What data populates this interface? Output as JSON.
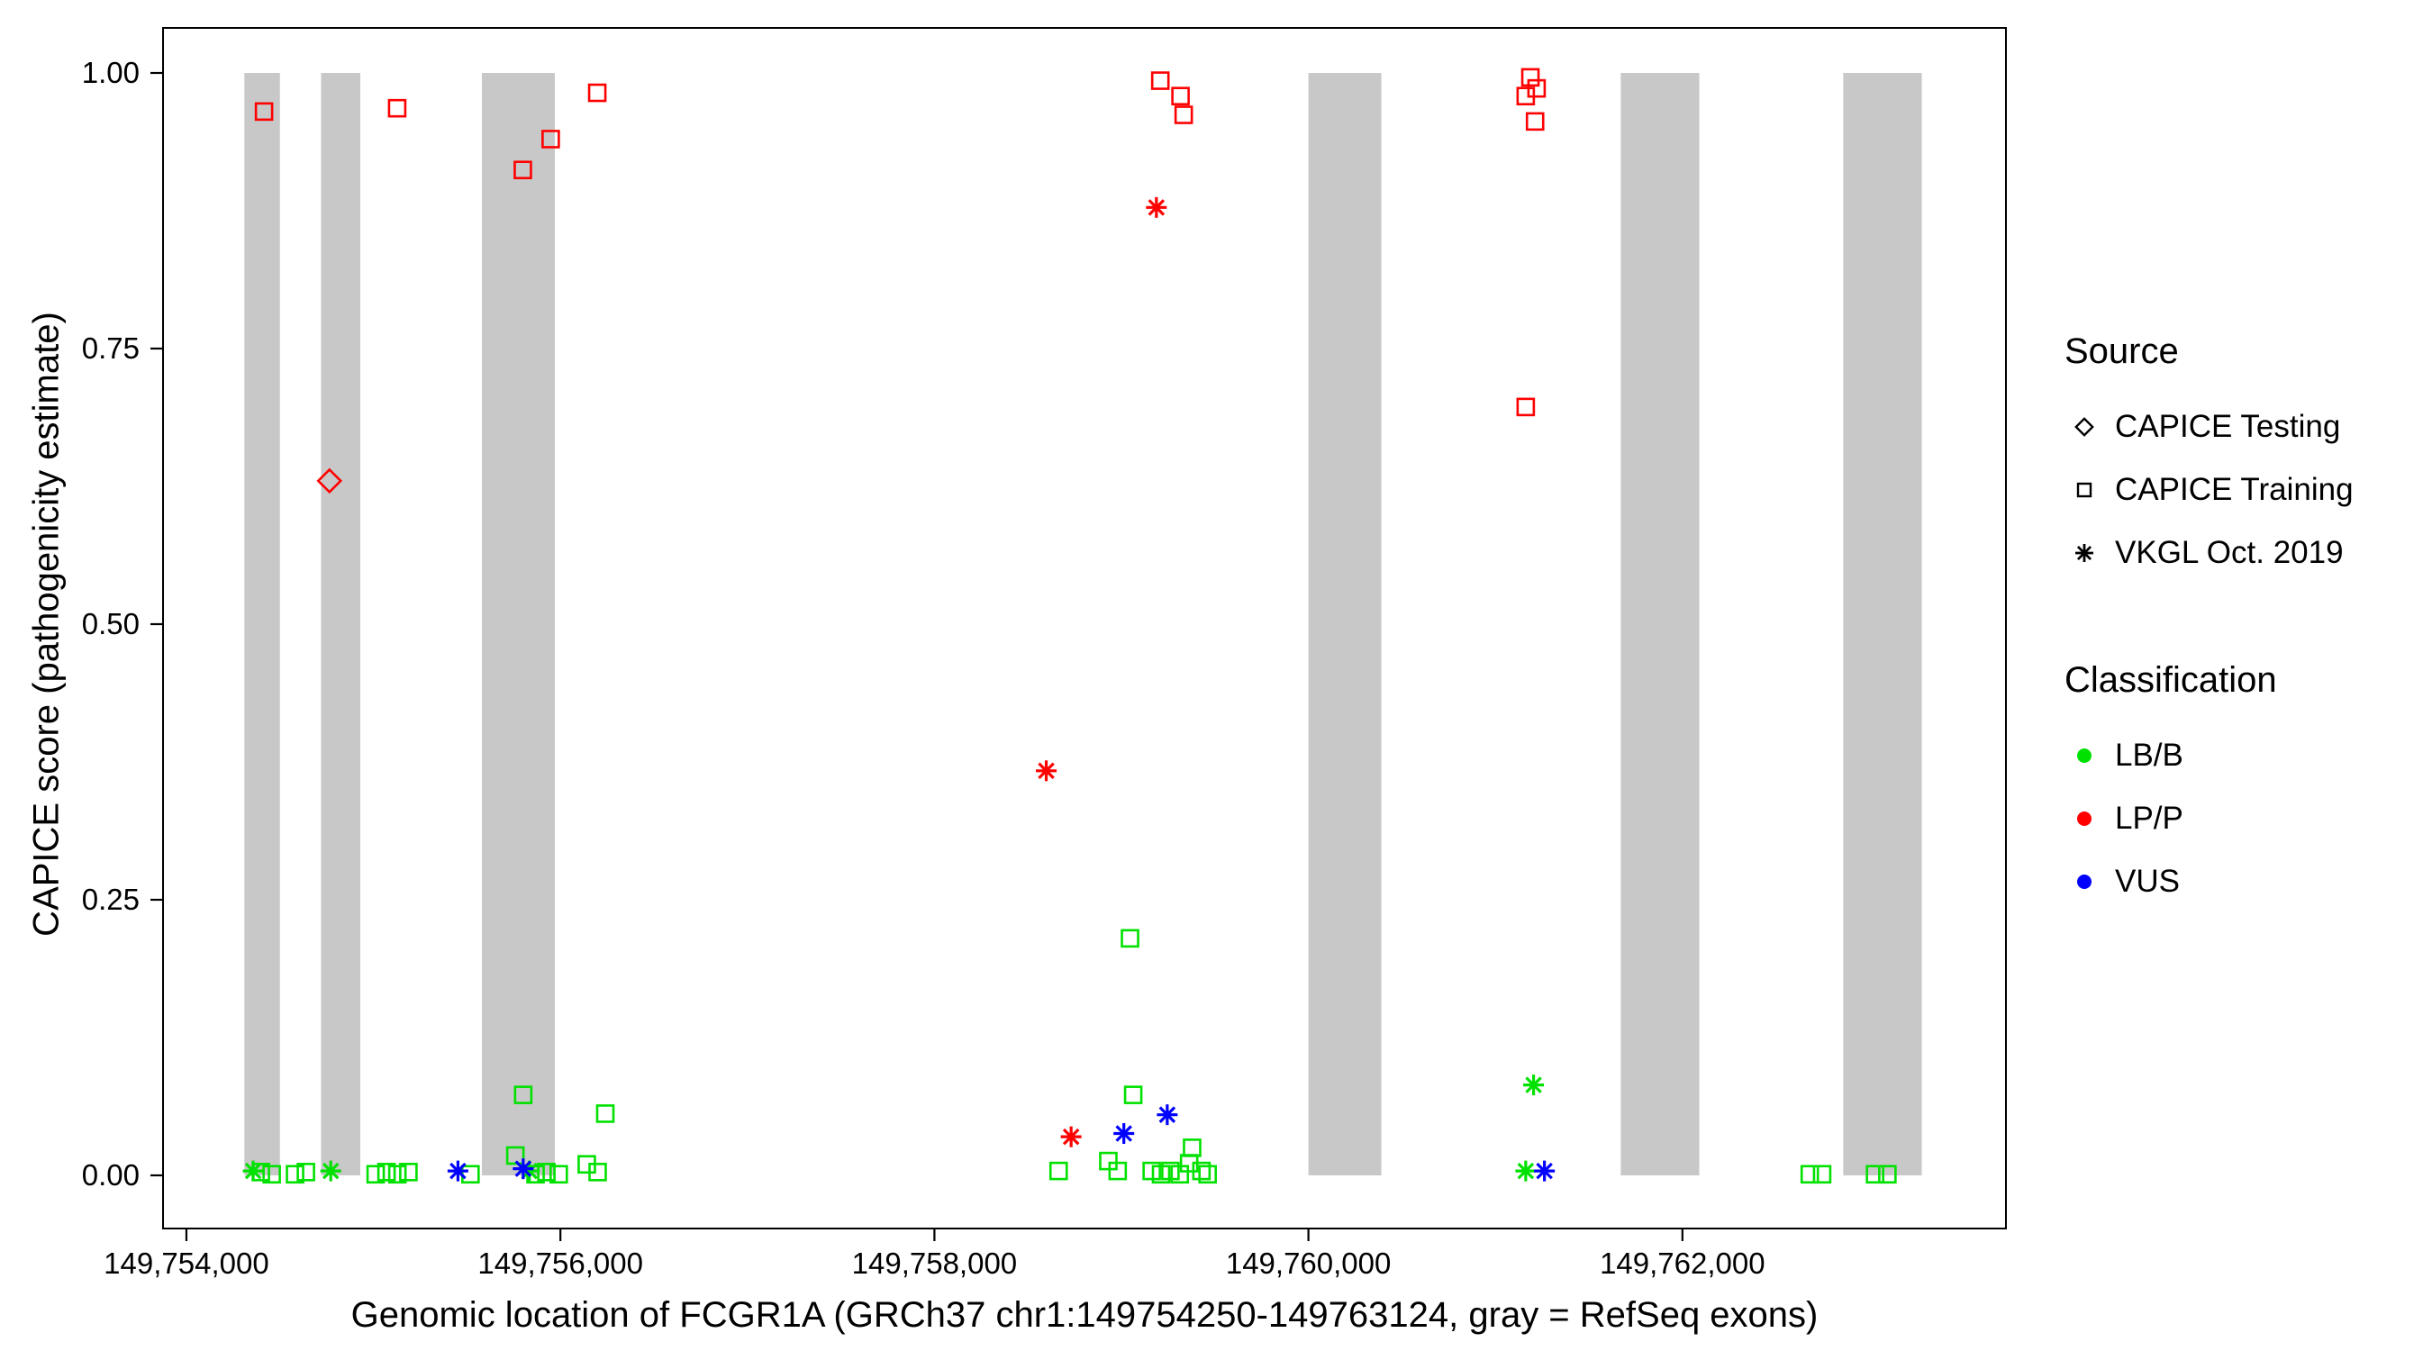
{
  "chart_data": {
    "type": "scatter",
    "title": "",
    "xlabel": "Genomic location of FCGR1A (GRCh37 chr1:149754250-149763124, gray = RefSeq exons)",
    "ylabel": "CAPICE score (pathogenicity estimate)",
    "x_domain": [
      149753875,
      149763730
    ],
    "y_domain": [
      0,
      1
    ],
    "grid": "off",
    "x_ticks": [
      {
        "value": 149754000,
        "label": "149,754,000"
      },
      {
        "value": 149756000,
        "label": "149,756,000"
      },
      {
        "value": 149758000,
        "label": "149,758,000"
      },
      {
        "value": 149760000,
        "label": "149,760,000"
      },
      {
        "value": 149762000,
        "label": "149,762,000"
      }
    ],
    "y_ticks": [
      {
        "value": 0.0,
        "label": "0.00"
      },
      {
        "value": 0.25,
        "label": "0.25"
      },
      {
        "value": 0.5,
        "label": "0.50"
      },
      {
        "value": 0.75,
        "label": "0.75"
      },
      {
        "value": 1.0,
        "label": "1.00"
      }
    ],
    "exon_color": "#c8c8c8",
    "exons": [
      {
        "start": 149754310,
        "end": 149754500
      },
      {
        "start": 149754720,
        "end": 149754930
      },
      {
        "start": 149755580,
        "end": 149755970
      },
      {
        "start": 149760000,
        "end": 149760390
      },
      {
        "start": 149761670,
        "end": 149762090
      },
      {
        "start": 149762860,
        "end": 149763280
      }
    ],
    "colors": {
      "LB/B": "#00e100",
      "LP/P": "#ff0000",
      "VUS": "#0000ff"
    },
    "series": [
      {
        "source": "CAPICE Testing",
        "classification": "LP/P",
        "shape": "diamond",
        "points": [
          [
            149754765,
            0.63
          ]
        ]
      },
      {
        "source": "CAPICE Training",
        "classification": "LP/P",
        "shape": "square",
        "points": [
          [
            149754415,
            0.965
          ],
          [
            149755127,
            0.968
          ],
          [
            149755799,
            0.912
          ],
          [
            149755948,
            0.94
          ],
          [
            149756197,
            0.982
          ],
          [
            149759208,
            0.993
          ],
          [
            149759316,
            0.979
          ],
          [
            149759333,
            0.962
          ],
          [
            149761187,
            0.996
          ],
          [
            149761220,
            0.986
          ],
          [
            149761162,
            0.979
          ],
          [
            149761212,
            0.956
          ],
          [
            149761162,
            0.697
          ]
        ]
      },
      {
        "source": "VKGL Oct. 2019",
        "classification": "LP/P",
        "shape": "asterisk",
        "points": [
          [
            149759187,
            0.878
          ],
          [
            149758598,
            0.367
          ],
          [
            149758731,
            0.035
          ]
        ]
      },
      {
        "source": "CAPICE Training",
        "classification": "LB/B",
        "shape": "square",
        "points": [
          [
            149754398,
            0.003
          ],
          [
            149754456,
            0.001
          ],
          [
            149754581,
            0.001
          ],
          [
            149754639,
            0.003
          ],
          [
            149755012,
            0.001
          ],
          [
            149755070,
            0.003
          ],
          [
            149755128,
            0.001
          ],
          [
            149755187,
            0.003
          ],
          [
            149755519,
            0.001
          ],
          [
            149755759,
            0.018
          ],
          [
            149755801,
            0.073
          ],
          [
            149755867,
            0.001
          ],
          [
            149755925,
            0.003
          ],
          [
            149755991,
            0.001
          ],
          [
            149756141,
            0.01
          ],
          [
            149756199,
            0.003
          ],
          [
            149756240,
            0.056
          ],
          [
            149758664,
            0.004
          ],
          [
            149758930,
            0.013
          ],
          [
            149758980,
            0.004
          ],
          [
            149759046,
            0.215
          ],
          [
            149759063,
            0.073
          ],
          [
            149759162,
            0.004
          ],
          [
            149759212,
            0.001
          ],
          [
            149759262,
            0.004
          ],
          [
            149759312,
            0.001
          ],
          [
            149759362,
            0.011
          ],
          [
            149759378,
            0.025
          ],
          [
            149759428,
            0.004
          ],
          [
            149759461,
            0.001
          ],
          [
            149762681,
            0.001
          ],
          [
            149762747,
            0.001
          ],
          [
            149763030,
            0.001
          ],
          [
            149763096,
            0.001
          ]
        ]
      },
      {
        "source": "VKGL Oct. 2019",
        "classification": "LB/B",
        "shape": "asterisk",
        "points": [
          [
            149754357,
            0.004
          ],
          [
            149754772,
            0.004
          ],
          [
            149755834,
            0.004
          ],
          [
            149761204,
            0.082
          ],
          [
            149761162,
            0.004
          ]
        ]
      },
      {
        "source": "VKGL Oct. 2019",
        "classification": "VUS",
        "shape": "asterisk",
        "points": [
          [
            149755452,
            0.004
          ],
          [
            149755801,
            0.006
          ],
          [
            149759013,
            0.038
          ],
          [
            149759245,
            0.055
          ],
          [
            149761262,
            0.004
          ]
        ]
      }
    ],
    "legend": {
      "position": "right",
      "source_title": "Source",
      "source_items": [
        {
          "label": "CAPICE Testing",
          "shape": "diamond"
        },
        {
          "label": "CAPICE Training",
          "shape": "square"
        },
        {
          "label": "VKGL Oct. 2019",
          "shape": "asterisk"
        }
      ],
      "classification_title": "Classification",
      "classification_items": [
        {
          "label": "LB/B",
          "color": "#00e100"
        },
        {
          "label": "LP/P",
          "color": "#ff0000"
        },
        {
          "label": "VUS",
          "color": "#0000ff"
        }
      ]
    }
  }
}
